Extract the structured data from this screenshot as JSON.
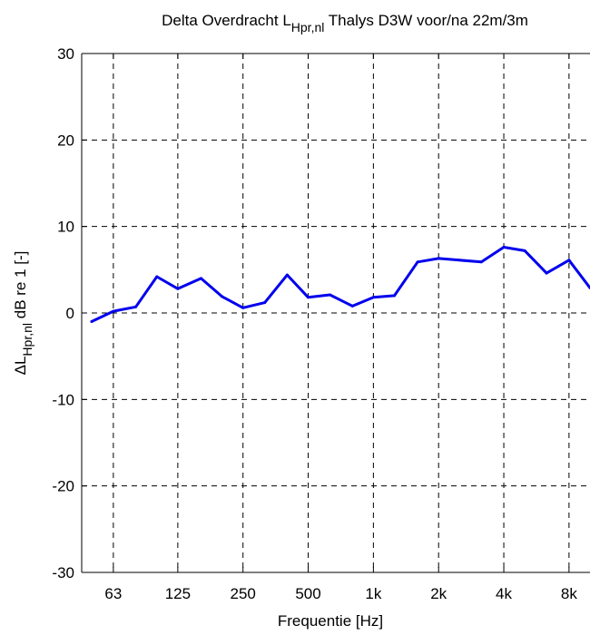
{
  "chart_data": {
    "type": "line",
    "title": {
      "prefix": "Delta Overdracht L",
      "subscript": "Hpr,nl",
      "suffix": " Thalys D3W voor/na 22m/3m"
    },
    "xlabel": "Frequentie [Hz]",
    "ylabel": {
      "prefix": "ΔL",
      "subscript": "Hpr,nl",
      "suffix": " dB re 1 [-]"
    },
    "x_scale": "log",
    "xlim": [
      45,
      10000
    ],
    "ylim": [
      -30,
      30
    ],
    "grid": true,
    "x_ticks": [
      {
        "value": 63,
        "label": "63"
      },
      {
        "value": 125,
        "label": "125"
      },
      {
        "value": 250,
        "label": "250"
      },
      {
        "value": 500,
        "label": "500"
      },
      {
        "value": 1000,
        "label": "1k"
      },
      {
        "value": 2000,
        "label": "2k"
      },
      {
        "value": 4000,
        "label": "4k"
      },
      {
        "value": 8000,
        "label": "8k"
      }
    ],
    "y_ticks": [
      {
        "value": -30,
        "label": "-30"
      },
      {
        "value": -20,
        "label": "-20"
      },
      {
        "value": -10,
        "label": "-10"
      },
      {
        "value": 0,
        "label": "0"
      },
      {
        "value": 10,
        "label": "10"
      },
      {
        "value": 20,
        "label": "20"
      },
      {
        "value": 30,
        "label": "30"
      }
    ],
    "series": [
      {
        "color": "#0000ee",
        "x": [
          50,
          63,
          80,
          100,
          125,
          160,
          200,
          250,
          315,
          400,
          500,
          630,
          800,
          1000,
          1250,
          1600,
          2000,
          2500,
          3150,
          4000,
          5000,
          6300,
          8000,
          10000
        ],
        "y": [
          -1.0,
          0.2,
          0.7,
          4.2,
          2.8,
          4.0,
          1.9,
          0.6,
          1.2,
          4.4,
          1.8,
          2.1,
          0.8,
          1.8,
          2.0,
          5.9,
          6.3,
          6.1,
          5.9,
          7.6,
          7.2,
          4.6,
          6.1,
          2.9
        ]
      }
    ]
  }
}
